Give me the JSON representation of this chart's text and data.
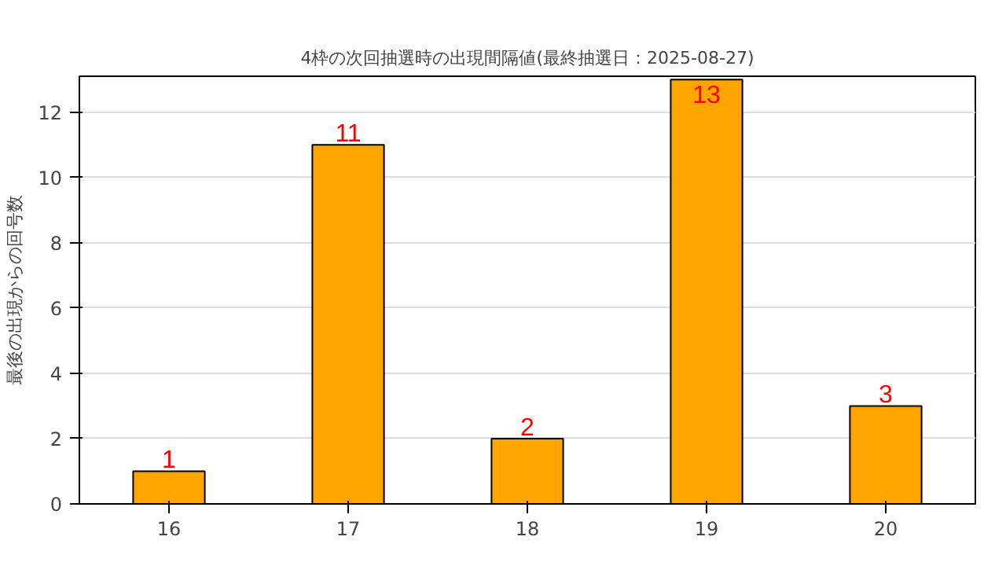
{
  "chart_data": {
    "type": "bar",
    "title": "4枠の次回抽選時の出現間隔値(最終抽選日：2025-08-27)",
    "ylabel": "最後の出現からの回号数",
    "categories": [
      "16",
      "17",
      "18",
      "19",
      "20"
    ],
    "values": [
      1,
      11,
      2,
      13,
      3
    ],
    "color": "#ffa500",
    "ylim": [
      0,
      13.1
    ],
    "yticks": [
      0,
      2,
      4,
      6,
      8,
      10,
      12
    ],
    "grid": "y",
    "data_labels": true
  }
}
